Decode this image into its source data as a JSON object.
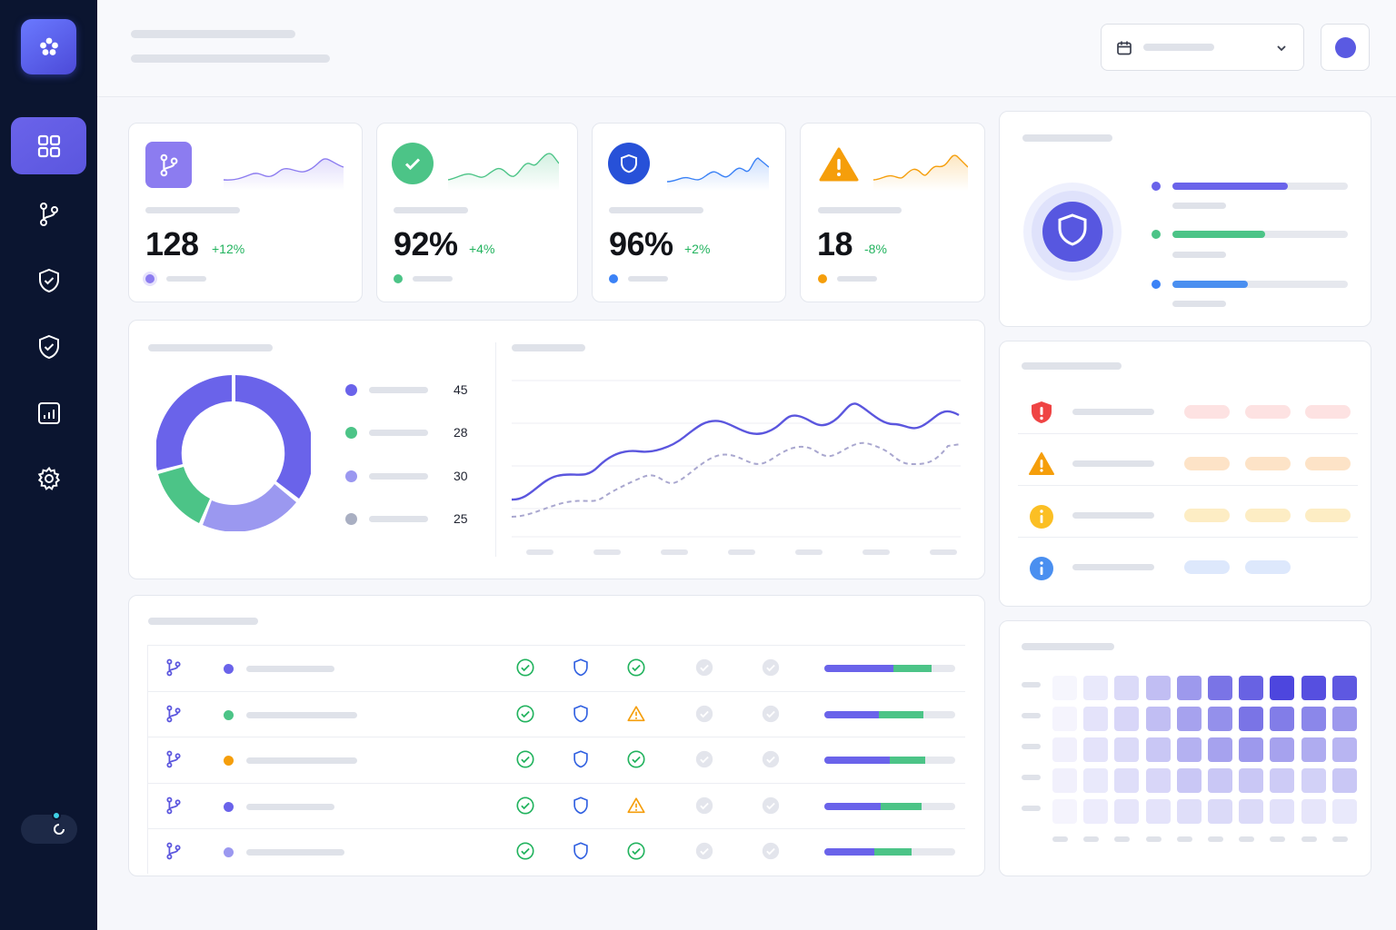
{
  "colors": {
    "brand": "#5a5ae2",
    "purple": "#6a63ea",
    "green": "#4cc487",
    "blue": "#2f5fe0",
    "orange": "#f59e0b",
    "red": "#ef4444",
    "sidebar": "#0b1530"
  },
  "sidebar": {
    "logo_icon": "flower-logo-icon",
    "items": [
      {
        "icon": "grid-icon",
        "active": true
      },
      {
        "icon": "git-branch-icon",
        "active": false
      },
      {
        "icon": "shield-check-icon",
        "active": false
      },
      {
        "icon": "shield-check-icon",
        "active": false
      },
      {
        "icon": "chart-icon",
        "active": false
      },
      {
        "icon": "gear-icon",
        "active": false
      }
    ],
    "toggle_icon": "theme-toggle-icon"
  },
  "header": {
    "date_icon": "calendar-icon",
    "dropdown_icon": "chevron-down-icon"
  },
  "stats": [
    {
      "icon": "git-branch-icon",
      "value": "128",
      "delta": "+12%",
      "delta_color": "#22b35e",
      "accent": "#6a63ea"
    },
    {
      "icon": "check-circle-icon",
      "value": "92%",
      "delta": "+4%",
      "delta_color": "#22b35e",
      "accent": "#4cc487"
    },
    {
      "icon": "shield-icon",
      "value": "96%",
      "delta": "+2%",
      "delta_color": "#22b35e",
      "accent": "#3b82f6"
    },
    {
      "icon": "warning-icon",
      "value": "18",
      "delta": "-8%",
      "delta_color": "#22b35e",
      "accent": "#f59e0b"
    }
  ],
  "distribution": {
    "legend_values": [
      "45",
      "28",
      "30",
      "25"
    ],
    "segment_colors": [
      "#6a63ea",
      "#4cc487",
      "#9b98f0",
      "#a9afc2"
    ]
  },
  "severity_icons": [
    "shield-alert-icon",
    "warning-icon",
    "info-icon",
    "info-icon"
  ],
  "table_rows": [
    {
      "dot": "#6a63ea",
      "status3": "check",
      "progress_purple": 0.53,
      "progress_green": 0.29
    },
    {
      "dot": "#4cc487",
      "status3": "warning",
      "progress_purple": 0.42,
      "progress_green": 0.34
    },
    {
      "dot": "#f59e0b",
      "status3": "check",
      "progress_purple": 0.5,
      "progress_green": 0.27
    },
    {
      "dot": "#6a63ea",
      "status3": "warning",
      "progress_purple": 0.43,
      "progress_green": 0.31
    },
    {
      "dot": "#9b98f0",
      "status3": "check",
      "progress_purple": 0.38,
      "progress_green": 0.29
    }
  ]
}
